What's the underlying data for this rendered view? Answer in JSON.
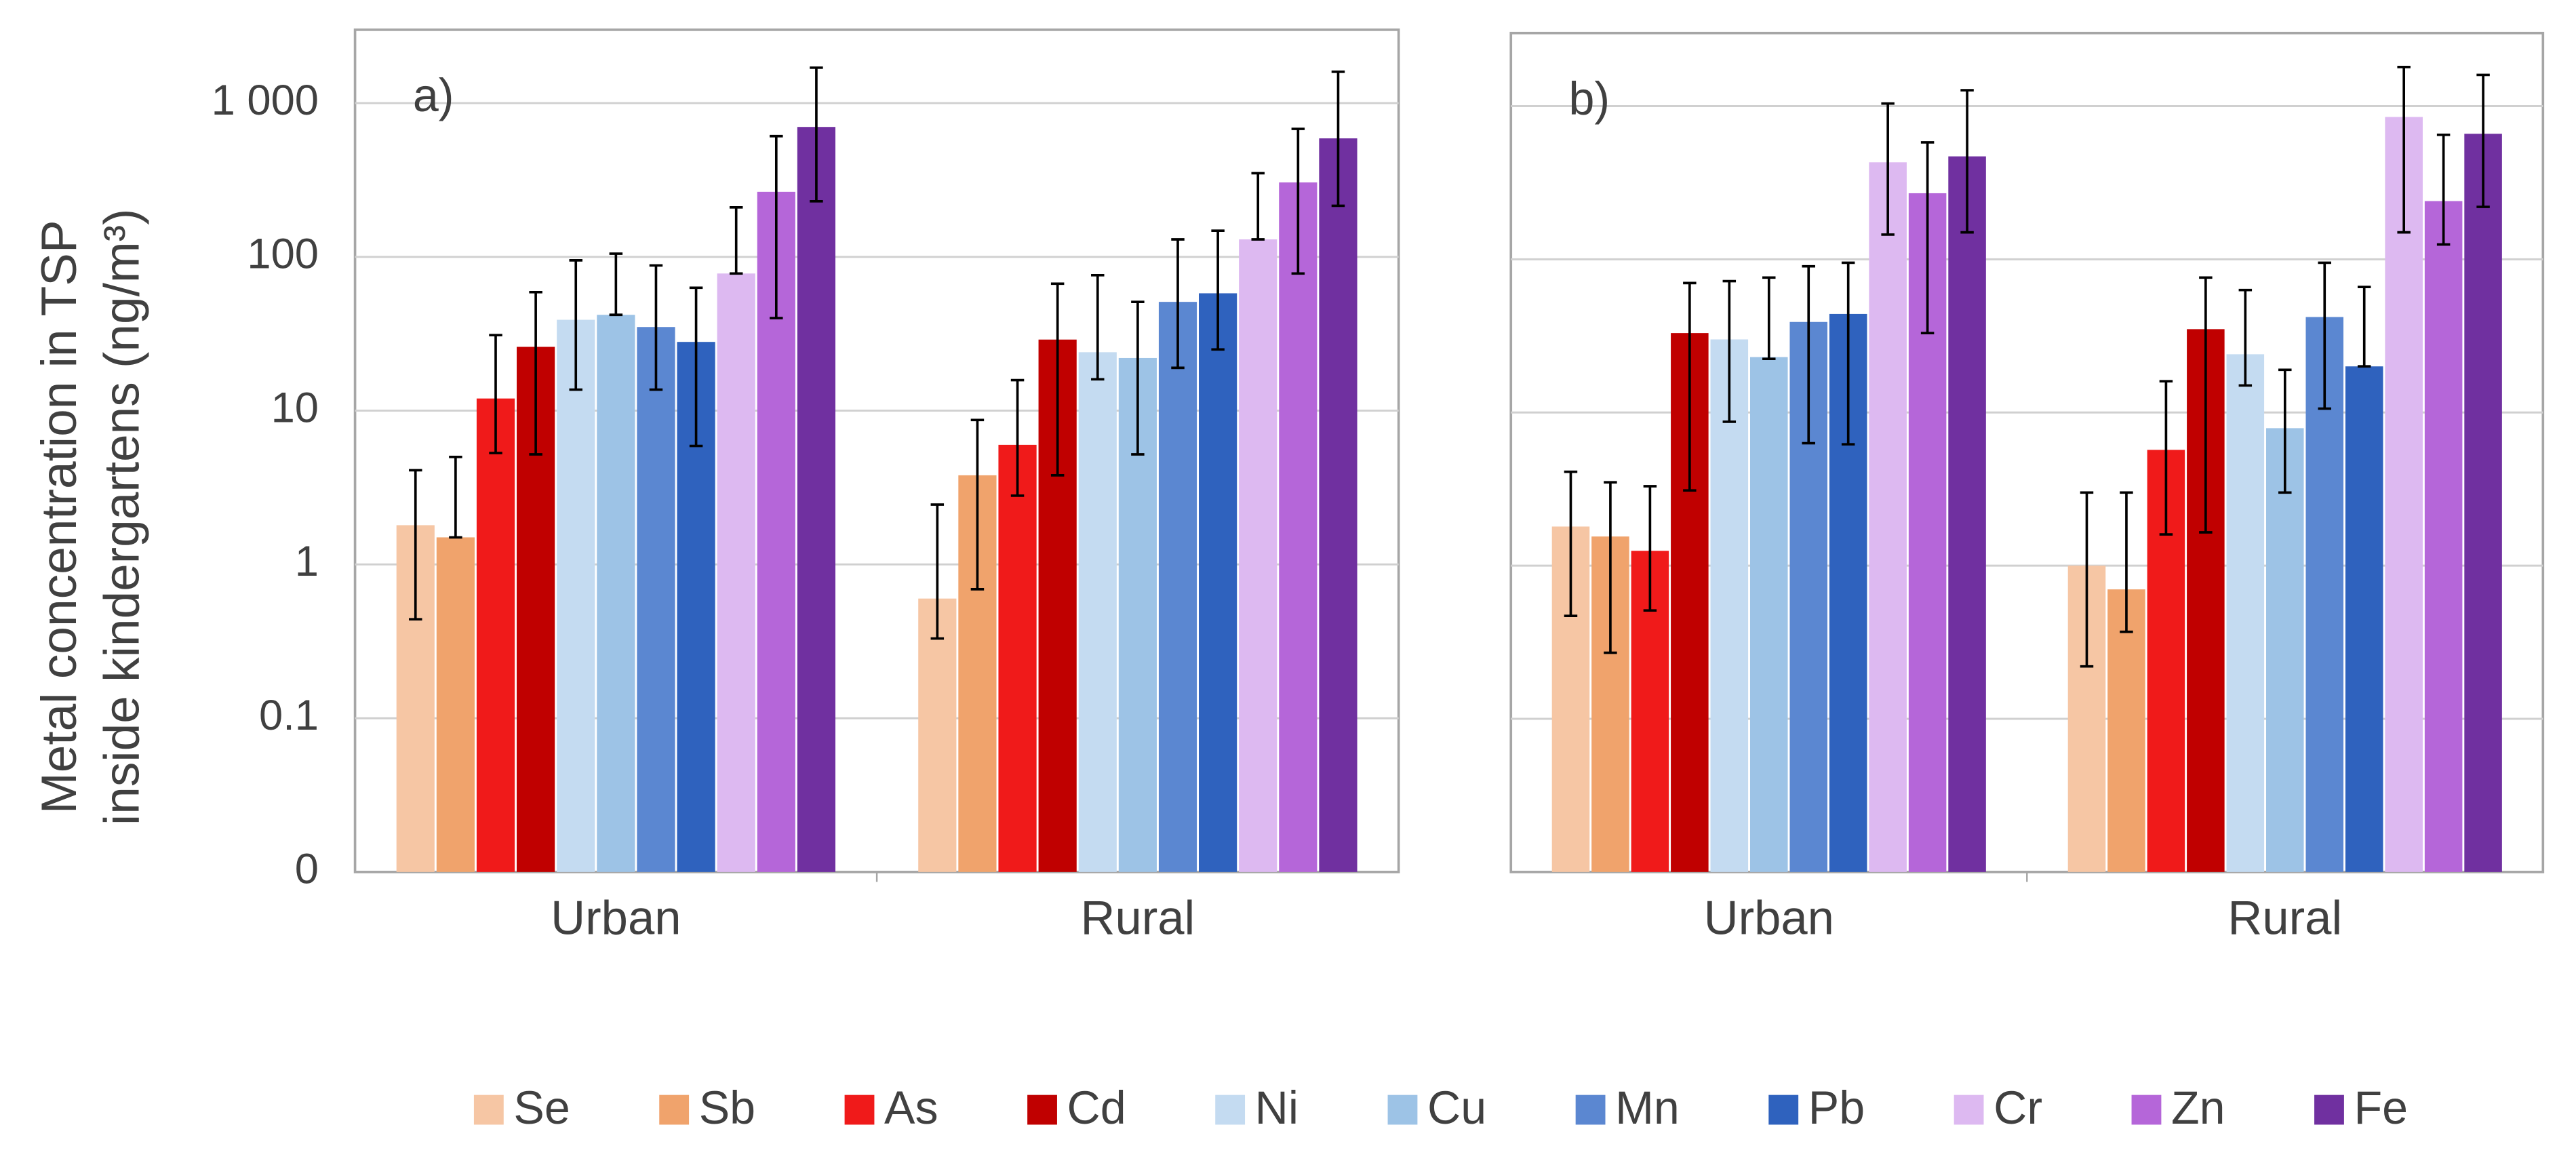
{
  "legend": [
    {
      "name": "Se",
      "color": "#f6c6a4"
    },
    {
      "name": "Sb",
      "color": "#f0a36c"
    },
    {
      "name": "As",
      "color": "#f01a1a"
    },
    {
      "name": "Cd",
      "color": "#c00000"
    },
    {
      "name": "Ni",
      "color": "#c4dbf1"
    },
    {
      "name": "Cu",
      "color": "#9dc3e6"
    },
    {
      "name": "Mn",
      "color": "#5b87d1"
    },
    {
      "name": "Pb",
      "color": "#2f62be"
    },
    {
      "name": "Cr",
      "color": "#ddb9f1"
    },
    {
      "name": "Zn",
      "color": "#b566d9"
    },
    {
      "name": "Fe",
      "color": "#7030a0"
    }
  ],
  "chart_data": [
    {
      "type": "bar",
      "title": "a)",
      "ylabel": [
        "Metal concentration in TSP",
        "inside kindergartens (ng/m³)"
      ],
      "log_scale": true,
      "grid": true,
      "ytick_labels": true,
      "ylim": [
        0.01,
        3000
      ],
      "yticks": [
        {
          "value": 0.01,
          "label": "0"
        },
        0.1,
        1,
        10,
        100,
        {
          "value": 1000,
          "label": "1 000"
        }
      ],
      "categories": [
        "Urban",
        "Rural"
      ],
      "series": [
        {
          "values": [
            1.8,
            0.6
          ],
          "lower": [
            0.44,
            0.33
          ],
          "upper": [
            4.1,
            2.45
          ]
        },
        {
          "values": [
            1.5,
            3.8
          ],
          "lower": [
            1.5,
            0.69
          ],
          "upper": [
            5.0,
            8.7
          ]
        },
        {
          "values": [
            12,
            6
          ],
          "lower": [
            5.3,
            2.8
          ],
          "upper": [
            31,
            15.8
          ]
        },
        {
          "values": [
            26,
            29
          ],
          "lower": [
            5.2,
            3.8
          ],
          "upper": [
            59,
            67
          ]
        },
        {
          "values": [
            39,
            24
          ],
          "lower": [
            13.7,
            16
          ],
          "upper": [
            95,
            76
          ]
        },
        {
          "values": [
            42,
            22
          ],
          "lower": [
            42,
            5.2
          ],
          "upper": [
            105,
            51
          ]
        },
        {
          "values": [
            35,
            51
          ],
          "lower": [
            13.7,
            19
          ],
          "upper": [
            88,
            130
          ]
        },
        {
          "values": [
            28,
            58
          ],
          "lower": [
            5.9,
            25
          ],
          "upper": [
            63,
            148
          ]
        },
        {
          "values": [
            78,
            130
          ],
          "lower": [
            78,
            130
          ],
          "upper": [
            210,
            350
          ]
        },
        {
          "values": [
            265,
            305
          ],
          "lower": [
            40,
            78
          ],
          "upper": [
            610,
            680
          ]
        },
        {
          "values": [
            700,
            590
          ],
          "lower": [
            230,
            215
          ],
          "upper": [
            1700,
            1600
          ]
        }
      ]
    },
    {
      "type": "bar",
      "title": "b)",
      "log_scale": true,
      "grid": true,
      "ytick_labels": false,
      "ylim": [
        0.01,
        3000
      ],
      "yticks": [
        0.1,
        1,
        10,
        100,
        1000
      ],
      "categories": [
        "Urban",
        "Rural"
      ],
      "series": [
        {
          "values": [
            1.8,
            1.0
          ],
          "lower": [
            0.47,
            0.22
          ],
          "upper": [
            4.1,
            3.0
          ]
        },
        {
          "values": [
            1.55,
            0.7
          ],
          "lower": [
            0.27,
            0.37
          ],
          "upper": [
            3.5,
            3.0
          ]
        },
        {
          "values": [
            1.25,
            5.7
          ],
          "lower": [
            0.51,
            1.6
          ],
          "upper": [
            3.3,
            16
          ]
        },
        {
          "values": [
            33,
            35
          ],
          "lower": [
            3.1,
            1.65
          ],
          "upper": [
            70,
            76
          ]
        },
        {
          "values": [
            30,
            24
          ],
          "lower": [
            8.7,
            15
          ],
          "upper": [
            72,
            63
          ]
        },
        {
          "values": [
            23,
            7.9
          ],
          "lower": [
            22.4,
            3.0
          ],
          "upper": [
            76,
            19
          ]
        },
        {
          "values": [
            39,
            42
          ],
          "lower": [
            6.3,
            10.6
          ],
          "upper": [
            90,
            95
          ]
        },
        {
          "values": [
            44,
            20
          ],
          "lower": [
            6.2,
            20
          ],
          "upper": [
            95,
            66
          ]
        },
        {
          "values": [
            430,
            850
          ],
          "lower": [
            145,
            150
          ],
          "upper": [
            1040,
            1800
          ]
        },
        {
          "values": [
            270,
            240
          ],
          "lower": [
            33,
            125
          ],
          "upper": [
            580,
            650
          ]
        },
        {
          "values": [
            470,
            660
          ],
          "lower": [
            150,
            220
          ],
          "upper": [
            1270,
            1600
          ]
        }
      ]
    }
  ]
}
